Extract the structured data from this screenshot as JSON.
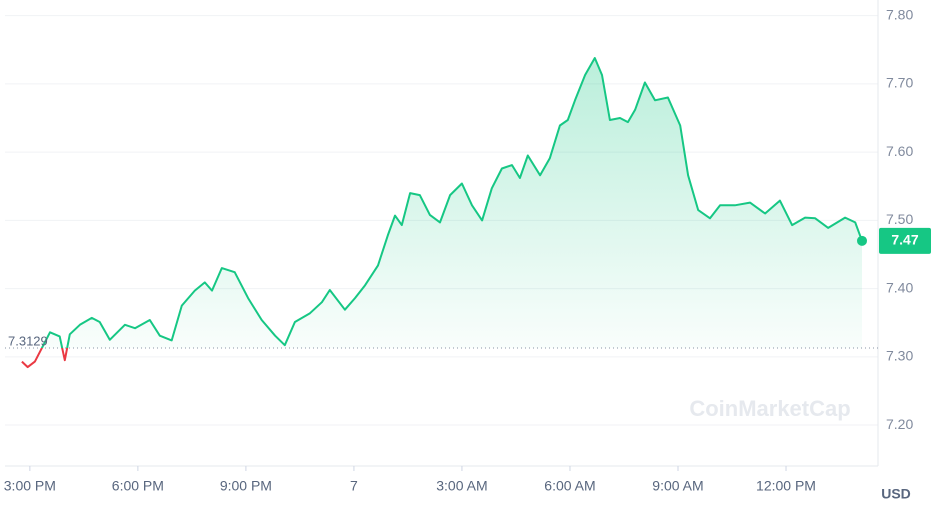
{
  "chart_data": {
    "type": "line",
    "watermark": "CoinMarketCap",
    "currency_label": "USD",
    "reference": {
      "value": 7.3129,
      "label": "7.3129"
    },
    "current": {
      "value": 7.47,
      "label": "7.47"
    },
    "up_color": "#16c784",
    "down_color": "#ea3943",
    "grid": true,
    "xlim": [
      14.31,
      38.11
    ],
    "xticks": [
      {
        "value": 15,
        "label": "3:00 PM"
      },
      {
        "value": 18,
        "label": "6:00 PM"
      },
      {
        "value": 21,
        "label": "9:00 PM"
      },
      {
        "value": 24,
        "label": "7"
      },
      {
        "value": 27,
        "label": "3:00 AM"
      },
      {
        "value": 30,
        "label": "6:00 AM"
      },
      {
        "value": 33,
        "label": "9:00 AM"
      },
      {
        "value": 36,
        "label": "12:00 PM"
      }
    ],
    "ylim": [
      7.14,
      7.82
    ],
    "yticks": [
      {
        "value": 7.2,
        "label": "7.20"
      },
      {
        "value": 7.3,
        "label": "7.30"
      },
      {
        "value": 7.4,
        "label": "7.40"
      },
      {
        "value": 7.5,
        "label": "7.50"
      },
      {
        "value": 7.6,
        "label": "7.60"
      },
      {
        "value": 7.7,
        "label": "7.70"
      },
      {
        "value": 7.8,
        "label": "7.80"
      }
    ],
    "x": [
      14.78,
      14.94,
      15.14,
      15.56,
      15.83,
      15.97,
      16.11,
      16.39,
      16.72,
      16.94,
      17.22,
      17.64,
      17.92,
      18.33,
      18.61,
      18.94,
      19.22,
      19.58,
      19.86,
      20.06,
      20.33,
      20.69,
      21.06,
      21.44,
      21.81,
      22.08,
      22.36,
      22.78,
      23.11,
      23.33,
      23.75,
      24.03,
      24.31,
      24.67,
      24.94,
      25.14,
      25.33,
      25.56,
      25.83,
      26.11,
      26.39,
      26.67,
      27.0,
      27.28,
      27.56,
      27.83,
      28.11,
      28.39,
      28.61,
      28.83,
      29.17,
      29.44,
      29.72,
      29.94,
      30.14,
      30.42,
      30.69,
      30.89,
      31.11,
      31.39,
      31.61,
      31.81,
      32.08,
      32.36,
      32.72,
      33.06,
      33.28,
      33.56,
      33.89,
      34.17,
      34.58,
      35.0,
      35.42,
      35.83,
      36.17,
      36.53,
      36.81,
      37.17,
      37.64,
      37.92,
      38.11
    ],
    "values": [
      7.293,
      7.285,
      7.293,
      7.336,
      7.33,
      7.295,
      7.333,
      7.347,
      7.357,
      7.351,
      7.325,
      7.347,
      7.342,
      7.354,
      7.331,
      7.324,
      7.375,
      7.397,
      7.409,
      7.397,
      7.43,
      7.424,
      7.386,
      7.354,
      7.331,
      7.317,
      7.351,
      7.364,
      7.38,
      7.398,
      7.369,
      7.386,
      7.405,
      7.434,
      7.478,
      7.507,
      7.493,
      7.54,
      7.537,
      7.508,
      7.497,
      7.537,
      7.554,
      7.522,
      7.5,
      7.547,
      7.576,
      7.581,
      7.562,
      7.595,
      7.566,
      7.591,
      7.639,
      7.647,
      7.676,
      7.713,
      7.738,
      7.713,
      7.647,
      7.65,
      7.644,
      7.662,
      7.702,
      7.676,
      7.68,
      7.639,
      7.566,
      7.515,
      7.503,
      7.522,
      7.522,
      7.526,
      7.51,
      7.529,
      7.493,
      7.504,
      7.503,
      7.489,
      7.504,
      7.497,
      7.47
    ]
  }
}
